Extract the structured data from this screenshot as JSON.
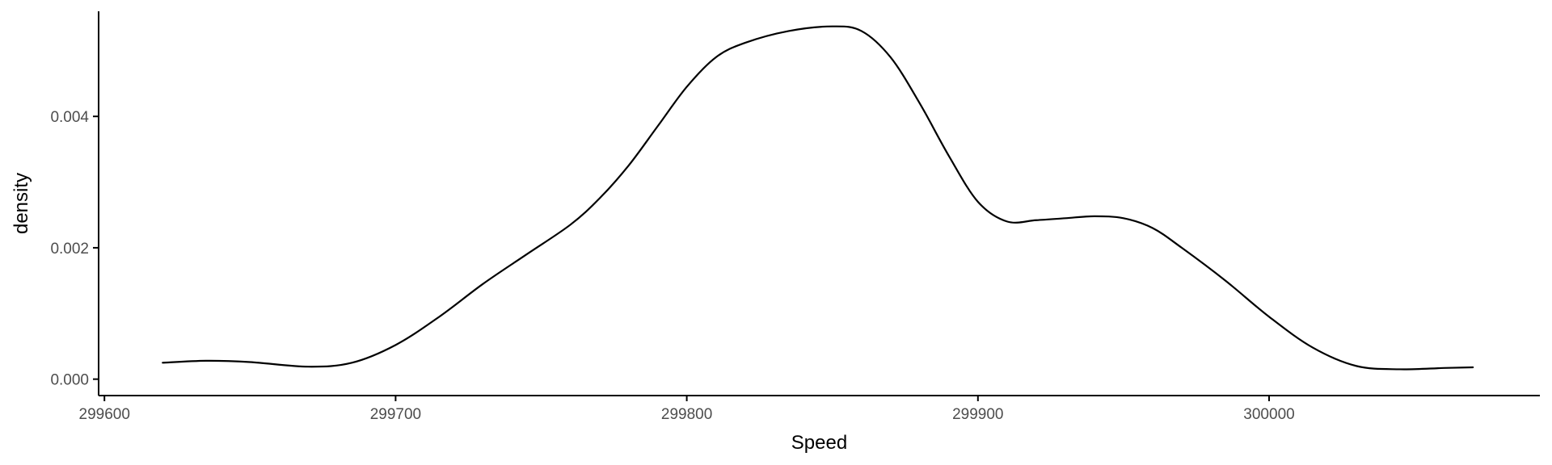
{
  "chart_data": {
    "type": "line",
    "title": "",
    "xlabel": "Speed",
    "ylabel": "density",
    "xlim": [
      299598,
      300093
    ],
    "ylim": [
      -0.00025,
      0.0056
    ],
    "x_ticks": [
      299600,
      299700,
      299800,
      299900,
      300000
    ],
    "x_tick_labels": [
      "299600",
      "299700",
      "299800",
      "299900",
      "300000"
    ],
    "y_ticks": [
      0.0,
      0.002,
      0.004
    ],
    "y_tick_labels": [
      "0.000",
      "0.002",
      "0.004"
    ],
    "grid": false,
    "legend": "none",
    "line_color": "#000000",
    "series": [
      {
        "x": [
          299620,
          299635,
          299650,
          299670,
          299685,
          299700,
          299715,
          299730,
          299745,
          299760,
          299770,
          299780,
          299790,
          299800,
          299810,
          299820,
          299835,
          299850,
          299860,
          299870,
          299880,
          299890,
          299900,
          299910,
          299920,
          299930,
          299940,
          299950,
          299960,
          299970,
          299985,
          300000,
          300015,
          300030,
          300045,
          300060,
          300070
        ],
        "y": [
          0.00025,
          0.00028,
          0.00026,
          0.00019,
          0.00025,
          0.00052,
          0.00095,
          0.00145,
          0.0019,
          0.00235,
          0.00275,
          0.00325,
          0.00385,
          0.00445,
          0.0049,
          0.00512,
          0.0053,
          0.00537,
          0.0053,
          0.0049,
          0.0042,
          0.0034,
          0.0027,
          0.0024,
          0.00242,
          0.00245,
          0.00248,
          0.00245,
          0.0023,
          0.002,
          0.0015,
          0.00095,
          0.00048,
          0.0002,
          0.00015,
          0.00017,
          0.00018
        ]
      }
    ]
  }
}
